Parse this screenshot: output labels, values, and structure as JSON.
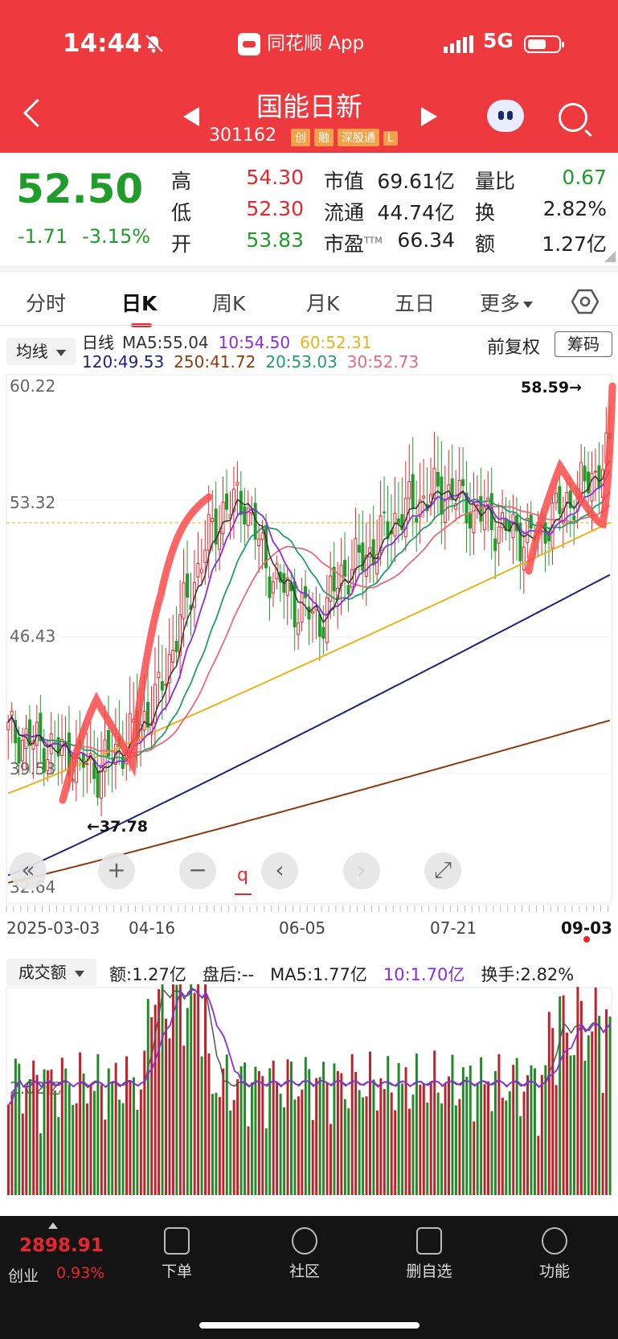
{
  "status_bar": {
    "time": "14:44",
    "app_label": "同花顺 App",
    "network": "5G",
    "icons": [
      "bell-muted-icon",
      "signal-icon",
      "battery-icon"
    ]
  },
  "nav": {
    "title": "国能日新",
    "code": "301162",
    "tags": [
      "创",
      "融",
      "深股通",
      "L"
    ]
  },
  "quote": {
    "price": "52.50",
    "change": "-1.71",
    "change_pct": "-3.15%",
    "rows": [
      [
        {
          "label": "高",
          "value": "54.30",
          "color": "red"
        },
        {
          "label": "市值",
          "value": "69.61亿"
        },
        {
          "label": "量比",
          "value": "0.67",
          "color": "green"
        }
      ],
      [
        {
          "label": "低",
          "value": "52.30",
          "color": "red"
        },
        {
          "label": "流通",
          "value": "44.74亿"
        },
        {
          "label": "换",
          "value": "2.82%"
        }
      ],
      [
        {
          "label": "开",
          "value": "53.83",
          "color": "green"
        },
        {
          "label": "市盈",
          "sup": "TTM",
          "value": "66.34"
        },
        {
          "label": "额",
          "value": "1.27亿"
        }
      ]
    ]
  },
  "tabs": [
    "分时",
    "日K",
    "周K",
    "月K",
    "五日",
    "更多"
  ],
  "active_tab": "日K",
  "kline": {
    "selector": "均线",
    "line_label": "日线",
    "ma_row1": [
      {
        "t": "MA5:55.04",
        "c": "#333333"
      },
      {
        "t": "10:54.50",
        "c": "#8a2be2"
      },
      {
        "t": "60:52.31",
        "c": "#e8b21a"
      }
    ],
    "ma_row2": [
      {
        "t": "120:49.53",
        "c": "#1a237e"
      },
      {
        "t": "250:41.72",
        "c": "#8b3a0f"
      },
      {
        "t": "20:53.03",
        "c": "#1f9d6a"
      },
      {
        "t": "30:52.73",
        "c": "#e86a7a"
      }
    ],
    "adjust": "前复权",
    "chips_btn": "筹码",
    "y_labels": [
      "60.22",
      "53.32",
      "46.43",
      "39.53",
      "32.64"
    ],
    "high_mark": "58.59→",
    "low_mark": "←37.78",
    "dates": [
      "2025-03-03",
      "04-16",
      "06-05",
      "07-21",
      "09-03"
    ],
    "controls": [
      "«",
      "+",
      "−",
      "‹",
      "›",
      "⤢"
    ]
  },
  "volume": {
    "selector": "成交额",
    "amount": "额:1.27亿",
    "after": "盘后:--",
    "ma5": "MA5:1.77亿",
    "ma10": "10:1.70亿",
    "turnover": "换手:2.82%",
    "y_label": "2.02亿"
  },
  "bottom_bar": {
    "index_value": "2898.91",
    "index_name": "创业",
    "index_pct": "0.93%",
    "items": [
      {
        "label": "下单",
        "icon": "order-icon"
      },
      {
        "label": "社区",
        "icon": "community-icon"
      },
      {
        "label": "删自选",
        "icon": "remove-watchlist-icon"
      },
      {
        "label": "功能",
        "icon": "menu-icon"
      }
    ]
  },
  "colors": {
    "header_red": "#ee3a3e",
    "up": "#e8262d",
    "down": "#1f9d2a",
    "ma120": "#1a237e",
    "ma250": "#8b3a0f"
  }
}
